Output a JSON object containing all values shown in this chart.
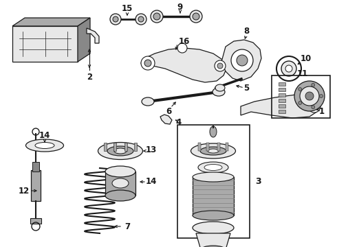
{
  "bg_color": "#ffffff",
  "line_color": "#1a1a1a",
  "gray_fill": "#c8c8c8",
  "light_gray": "#e8e8e8",
  "mid_gray": "#aaaaaa",
  "dark_gray": "#888888",
  "figsize": [
    4.9,
    3.6
  ],
  "dpi": 100,
  "title_fontsize": 8,
  "label_fontsize": 8.5
}
